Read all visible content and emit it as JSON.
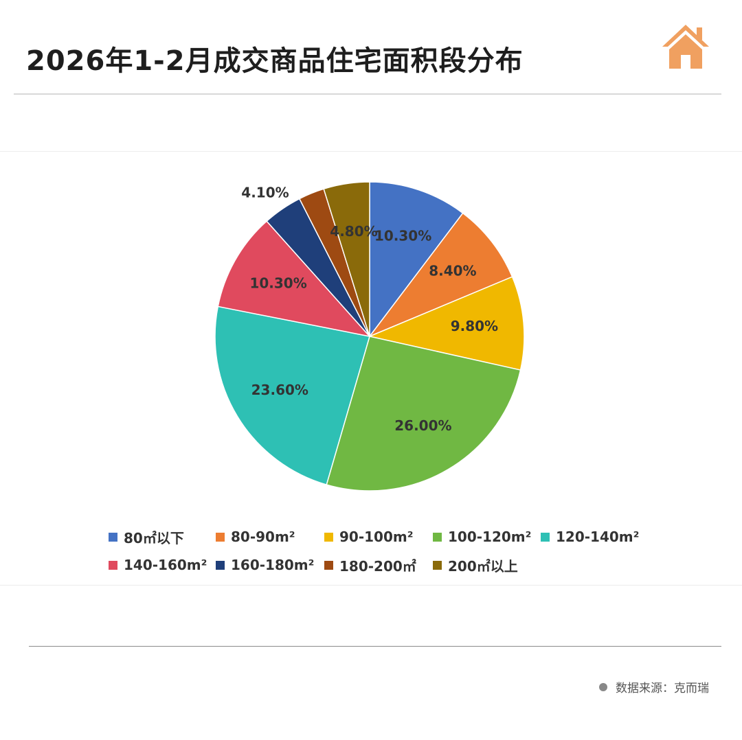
{
  "header": {
    "title": "2026年1-2月成交商品住宅面积段分布",
    "logo_icon": "house-icon"
  },
  "footer": {
    "source_text": "数据来源：克而瑞"
  },
  "chart_data": {
    "type": "pie",
    "title": "2026年1-2月成交商品住宅面积段分布",
    "categories": [
      "80㎡以下",
      "80-90m²",
      "90-100m²",
      "100-120m²",
      "120-140m²",
      "140-160m²",
      "160-180m²",
      "180-200㎡",
      "200㎡以上"
    ],
    "values": [
      10.3,
      8.4,
      9.8,
      26.0,
      23.6,
      10.3,
      4.1,
      2.7,
      4.8
    ],
    "labels": [
      "10.30%",
      "8.40%",
      "9.80%",
      "26.00%",
      "23.60%",
      "10.30%",
      "4.10%",
      "",
      "4.80%"
    ],
    "colors": [
      "#4472c4",
      "#ed7d31",
      "#f0b800",
      "#70b843",
      "#2ec0b4",
      "#e04a5e",
      "#1f3f7a",
      "#9e4a12",
      "#8a6a0a"
    ],
    "legend_position": "bottom"
  }
}
